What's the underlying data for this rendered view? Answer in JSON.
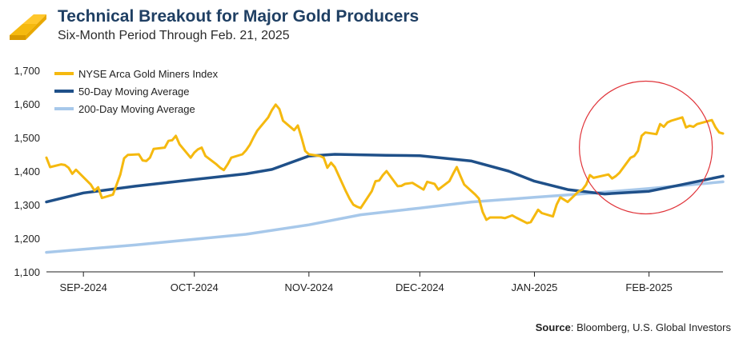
{
  "header": {
    "title": "Technical Breakout for Major Gold Producers",
    "subtitle": "Six-Month Period Through Feb. 21, 2025",
    "logo_icon": "gold-bars-icon"
  },
  "footer": {
    "source_label": "Source",
    "source_text": ": Bloomberg, U.S. Global Investors"
  },
  "chart_data": {
    "type": "line",
    "title": "Technical Breakout for Major Gold Producers",
    "subtitle": "Six-Month Period Through Feb. 21, 2025",
    "xlabel": "",
    "ylabel": "",
    "ylim": [
      1100,
      1700
    ],
    "yticks": [
      "1,100",
      "1,200",
      "1,300",
      "1,400",
      "1,500",
      "1,600",
      "1,700"
    ],
    "xrange": [
      "2024-08-22",
      "2025-02-21"
    ],
    "xticks": [
      {
        "date": "2024-09-01",
        "label": "SEP-2024"
      },
      {
        "date": "2024-10-01",
        "label": "OCT-2024"
      },
      {
        "date": "2024-11-01",
        "label": "NOV-2024"
      },
      {
        "date": "2024-12-01",
        "label": "DEC-2024"
      },
      {
        "date": "2025-01-01",
        "label": "JAN-2025"
      },
      {
        "date": "2025-02-01",
        "label": "FEB-2025"
      }
    ],
    "grid": false,
    "legend": "top-left",
    "annotation": {
      "type": "circle",
      "center": {
        "date": "2025-02-01",
        "value": 1475
      },
      "color": "#e0343a"
    },
    "series": [
      {
        "name": "NYSE Arca Gold Miners Index",
        "color": "#f5b90f",
        "points": [
          [
            "2024-08-22",
            1440
          ],
          [
            "2024-08-23",
            1412
          ],
          [
            "2024-08-26",
            1420
          ],
          [
            "2024-08-27",
            1418
          ],
          [
            "2024-08-28",
            1410
          ],
          [
            "2024-08-29",
            1392
          ],
          [
            "2024-08-30",
            1404
          ],
          [
            "2024-09-03",
            1360
          ],
          [
            "2024-09-04",
            1342
          ],
          [
            "2024-09-05",
            1352
          ],
          [
            "2024-09-06",
            1320
          ],
          [
            "2024-09-09",
            1330
          ],
          [
            "2024-09-10",
            1360
          ],
          [
            "2024-09-11",
            1390
          ],
          [
            "2024-09-12",
            1438
          ],
          [
            "2024-09-13",
            1448
          ],
          [
            "2024-09-16",
            1450
          ],
          [
            "2024-09-17",
            1432
          ],
          [
            "2024-09-18",
            1430
          ],
          [
            "2024-09-19",
            1440
          ],
          [
            "2024-09-20",
            1466
          ],
          [
            "2024-09-23",
            1470
          ],
          [
            "2024-09-24",
            1490
          ],
          [
            "2024-09-25",
            1492
          ],
          [
            "2024-09-26",
            1505
          ],
          [
            "2024-09-27",
            1480
          ],
          [
            "2024-09-30",
            1440
          ],
          [
            "2024-10-01",
            1455
          ],
          [
            "2024-10-02",
            1465
          ],
          [
            "2024-10-03",
            1470
          ],
          [
            "2024-10-04",
            1445
          ],
          [
            "2024-10-07",
            1420
          ],
          [
            "2024-10-08",
            1410
          ],
          [
            "2024-10-09",
            1403
          ],
          [
            "2024-10-10",
            1420
          ],
          [
            "2024-10-11",
            1440
          ],
          [
            "2024-10-14",
            1450
          ],
          [
            "2024-10-15",
            1462
          ],
          [
            "2024-10-16",
            1478
          ],
          [
            "2024-10-17",
            1500
          ],
          [
            "2024-10-18",
            1520
          ],
          [
            "2024-10-21",
            1560
          ],
          [
            "2024-10-22",
            1582
          ],
          [
            "2024-10-23",
            1598
          ],
          [
            "2024-10-24",
            1585
          ],
          [
            "2024-10-25",
            1550
          ],
          [
            "2024-10-28",
            1522
          ],
          [
            "2024-10-29",
            1536
          ],
          [
            "2024-10-30",
            1500
          ],
          [
            "2024-10-31",
            1460
          ],
          [
            "2024-11-01",
            1450
          ],
          [
            "2024-11-04",
            1445
          ],
          [
            "2024-11-05",
            1440
          ],
          [
            "2024-11-06",
            1410
          ],
          [
            "2024-11-07",
            1425
          ],
          [
            "2024-11-08",
            1412
          ],
          [
            "2024-11-11",
            1340
          ],
          [
            "2024-11-12",
            1318
          ],
          [
            "2024-11-13",
            1300
          ],
          [
            "2024-11-14",
            1294
          ],
          [
            "2024-11-15",
            1290
          ],
          [
            "2024-11-18",
            1340
          ],
          [
            "2024-11-19",
            1370
          ],
          [
            "2024-11-20",
            1372
          ],
          [
            "2024-11-21",
            1388
          ],
          [
            "2024-11-22",
            1400
          ],
          [
            "2024-11-25",
            1355
          ],
          [
            "2024-11-26",
            1356
          ],
          [
            "2024-11-27",
            1362
          ],
          [
            "2024-11-29",
            1365
          ],
          [
            "2024-12-02",
            1345
          ],
          [
            "2024-12-03",
            1368
          ],
          [
            "2024-12-04",
            1365
          ],
          [
            "2024-12-05",
            1362
          ],
          [
            "2024-12-06",
            1345
          ],
          [
            "2024-12-09",
            1370
          ],
          [
            "2024-12-10",
            1392
          ],
          [
            "2024-12-11",
            1412
          ],
          [
            "2024-12-12",
            1385
          ],
          [
            "2024-12-13",
            1360
          ],
          [
            "2024-12-16",
            1330
          ],
          [
            "2024-12-17",
            1318
          ],
          [
            "2024-12-18",
            1278
          ],
          [
            "2024-12-19",
            1255
          ],
          [
            "2024-12-20",
            1262
          ],
          [
            "2024-12-23",
            1262
          ],
          [
            "2024-12-24",
            1260
          ],
          [
            "2024-12-26",
            1268
          ],
          [
            "2024-12-27",
            1262
          ],
          [
            "2024-12-30",
            1245
          ],
          [
            "2024-12-31",
            1248
          ],
          [
            "2025-01-02",
            1285
          ],
          [
            "2025-01-03",
            1275
          ],
          [
            "2025-01-06",
            1265
          ],
          [
            "2025-01-07",
            1300
          ],
          [
            "2025-01-08",
            1322
          ],
          [
            "2025-01-10",
            1308
          ],
          [
            "2025-01-13",
            1340
          ],
          [
            "2025-01-14",
            1345
          ],
          [
            "2025-01-15",
            1360
          ],
          [
            "2025-01-16",
            1388
          ],
          [
            "2025-01-17",
            1380
          ],
          [
            "2025-01-21",
            1390
          ],
          [
            "2025-01-22",
            1378
          ],
          [
            "2025-01-23",
            1385
          ],
          [
            "2025-01-24",
            1395
          ],
          [
            "2025-01-27",
            1440
          ],
          [
            "2025-01-28",
            1445
          ],
          [
            "2025-01-29",
            1460
          ],
          [
            "2025-01-30",
            1505
          ],
          [
            "2025-01-31",
            1515
          ],
          [
            "2025-02-03",
            1510
          ],
          [
            "2025-02-04",
            1540
          ],
          [
            "2025-02-05",
            1532
          ],
          [
            "2025-02-06",
            1545
          ],
          [
            "2025-02-07",
            1550
          ],
          [
            "2025-02-10",
            1560
          ],
          [
            "2025-02-11",
            1530
          ],
          [
            "2025-02-12",
            1535
          ],
          [
            "2025-02-13",
            1532
          ],
          [
            "2025-02-14",
            1540
          ],
          [
            "2025-02-18",
            1552
          ],
          [
            "2025-02-19",
            1530
          ],
          [
            "2025-02-20",
            1515
          ],
          [
            "2025-02-21",
            1512
          ]
        ]
      },
      {
        "name": "50-Day Moving Average",
        "color": "#1f5089",
        "points": [
          [
            "2024-08-22",
            1308
          ],
          [
            "2024-09-01",
            1335
          ],
          [
            "2024-09-15",
            1355
          ],
          [
            "2024-10-01",
            1375
          ],
          [
            "2024-10-15",
            1392
          ],
          [
            "2024-10-22",
            1405
          ],
          [
            "2024-11-01",
            1445
          ],
          [
            "2024-11-08",
            1450
          ],
          [
            "2024-11-22",
            1447
          ],
          [
            "2024-12-01",
            1446
          ],
          [
            "2024-12-15",
            1430
          ],
          [
            "2024-12-25",
            1400
          ],
          [
            "2025-01-01",
            1370
          ],
          [
            "2025-01-10",
            1345
          ],
          [
            "2025-01-20",
            1332
          ],
          [
            "2025-02-01",
            1340
          ],
          [
            "2025-02-10",
            1360
          ],
          [
            "2025-02-21",
            1385
          ]
        ]
      },
      {
        "name": "200-Day Moving Average",
        "color": "#a7c8ea",
        "points": [
          [
            "2024-08-22",
            1158
          ],
          [
            "2024-09-15",
            1180
          ],
          [
            "2024-10-15",
            1212
          ],
          [
            "2024-11-01",
            1240
          ],
          [
            "2024-11-15",
            1270
          ],
          [
            "2024-12-01",
            1290
          ],
          [
            "2024-12-15",
            1308
          ],
          [
            "2025-01-01",
            1322
          ],
          [
            "2025-01-15",
            1333
          ],
          [
            "2025-02-01",
            1348
          ],
          [
            "2025-02-21",
            1368
          ]
        ]
      }
    ]
  }
}
